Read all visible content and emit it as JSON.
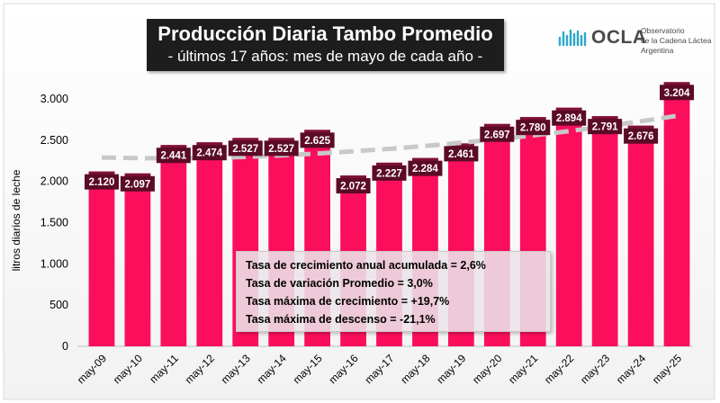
{
  "title": "Producción Diaria Tambo Promedio",
  "subtitle": "- últimos 17 años: mes de mayo de cada año -",
  "logo": {
    "name": "OCLA",
    "line1": "Observatorio",
    "line2": "de la Cadena Láctea",
    "line3": "Argentina"
  },
  "stats": [
    "Tasa de crecimiento anual acumulada = 2,6%",
    "Tasa de variación Promedio = 3,0%",
    "Tasa máxima de crecimiento = +19,7%",
    "Tasa máxima de descenso = -21,1%"
  ],
  "colors": {
    "bar": "#fb0f5c",
    "bar_top": "#7b1235",
    "label_bg": "#5b0a27",
    "trend": "#c8c8c8",
    "title_bg": "#1d1d1d",
    "logo_accent": "#2ba8c9"
  },
  "chart_data": {
    "type": "bar",
    "title": "Producción Diaria Tambo Promedio",
    "subtitle": "- últimos 17 años: mes de mayo de cada año -",
    "xlabel": "",
    "ylabel": "litros diarios de leche",
    "ylim": [
      0,
      3200
    ],
    "yticks": [
      0,
      500,
      1000,
      1500,
      2000,
      2500,
      3000
    ],
    "ytick_labels": [
      "0",
      "500",
      "1.000",
      "1.500",
      "2.000",
      "2.500",
      "3.000"
    ],
    "grid": false,
    "categories": [
      "may-09",
      "may-10",
      "may-11",
      "may-12",
      "may-13",
      "may-14",
      "may-15",
      "may-16",
      "may-17",
      "may-18",
      "may-19",
      "may-20",
      "may-21",
      "may-22",
      "may-23",
      "may-24",
      "may-25"
    ],
    "values": [
      2120,
      2097,
      2441,
      2474,
      2527,
      2527,
      2625,
      2072,
      2227,
      2284,
      2461,
      2697,
      2780,
      2894,
      2791,
      2676,
      3204
    ],
    "value_labels": [
      "2.120",
      "2.097",
      "2.441",
      "2.474",
      "2.527",
      "2.527",
      "2.625",
      "2.072",
      "2.227",
      "2.284",
      "2.461",
      "2.697",
      "2.780",
      "2.894",
      "2.791",
      "2.676",
      "3.204"
    ],
    "trendline": {
      "style": "dashed",
      "values": [
        2290,
        2282,
        2280,
        2285,
        2298,
        2316,
        2338,
        2365,
        2395,
        2430,
        2469,
        2511,
        2558,
        2610,
        2667,
        2728,
        2795
      ]
    }
  }
}
